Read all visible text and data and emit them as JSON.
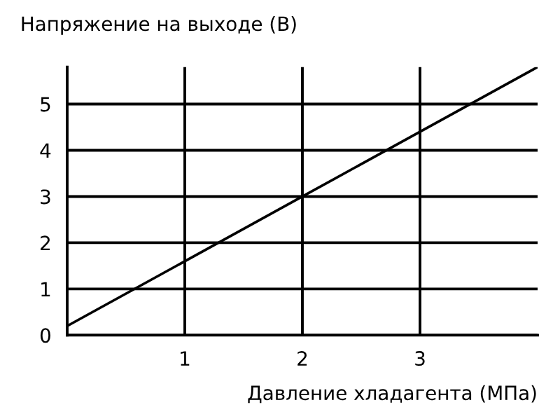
{
  "chart_data": {
    "type": "line",
    "ylabel": "Напряжение на выходе (В)",
    "xlabel": "Давление хладагента (МПа)",
    "x": [
      0,
      2,
      4
    ],
    "series": [
      {
        "color": "#000000",
        "values": [
          0.2,
          3,
          5.8
        ]
      }
    ],
    "xlim": [
      0,
      4
    ],
    "ylim": [
      0,
      5.8
    ],
    "xticks": [
      1,
      2,
      3
    ],
    "yticks": [
      0,
      1,
      2,
      3,
      4,
      5
    ],
    "grid": true,
    "marker": "none",
    "line_style": "solid",
    "legend": false
  }
}
